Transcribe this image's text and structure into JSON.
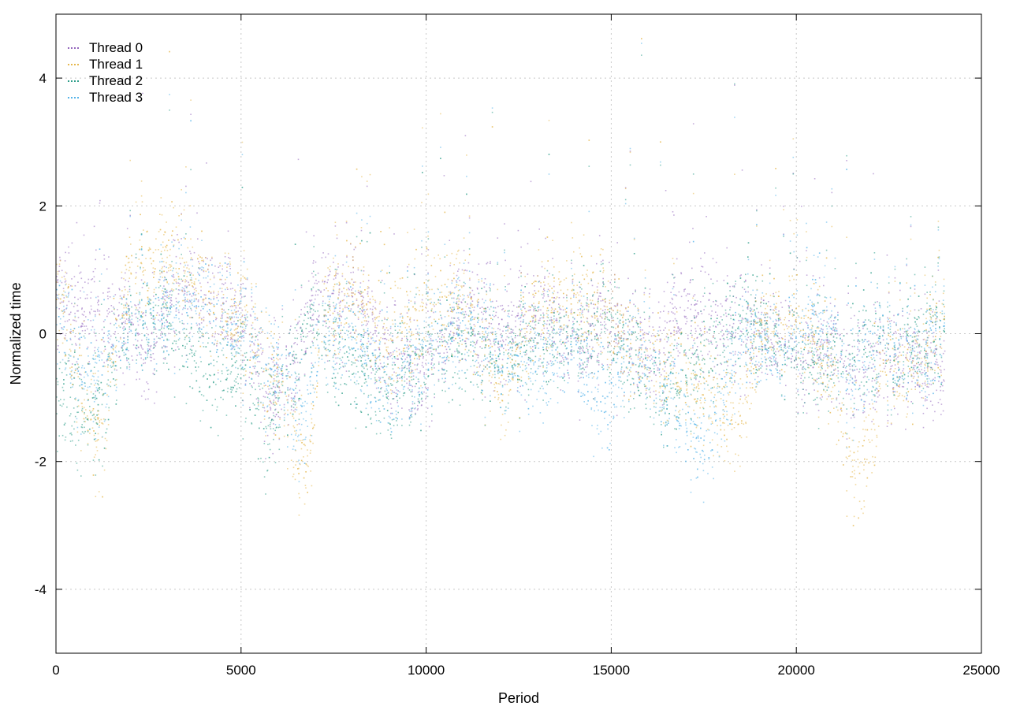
{
  "chart_data": {
    "type": "scatter",
    "title": "",
    "xlabel": "Period",
    "ylabel": "Normalized time",
    "xlim": [
      0,
      25000
    ],
    "ylim": [
      -5,
      5
    ],
    "xticks": [
      0,
      5000,
      10000,
      15000,
      20000,
      25000
    ],
    "yticks": [
      -4,
      -2,
      0,
      2,
      4
    ],
    "xtick_labels": [
      "0",
      "5000",
      "10000",
      "15000",
      "20000",
      "25000"
    ],
    "ytick_labels": [
      "-4",
      "-2",
      "0",
      "2",
      "4"
    ],
    "grid": true,
    "legend_position": "top-left",
    "x_extent": [
      0,
      24000
    ],
    "series": [
      {
        "name": "Thread 0",
        "color": "#9467bd",
        "trend": [
          [
            0,
            0.6
          ],
          [
            1000,
            0.2
          ],
          [
            2000,
            0.1
          ],
          [
            2500,
            -0.5
          ],
          [
            3000,
            0.6
          ],
          [
            4000,
            0.6
          ],
          [
            5000,
            0.2
          ],
          [
            5800,
            -1.0
          ],
          [
            6500,
            -0.5
          ],
          [
            7000,
            0.5
          ],
          [
            8000,
            0.5
          ],
          [
            9000,
            -0.4
          ],
          [
            10000,
            -0.5
          ],
          [
            11000,
            0.3
          ],
          [
            12000,
            0.1
          ],
          [
            13000,
            0.3
          ],
          [
            14000,
            -0.2
          ],
          [
            15000,
            0.2
          ],
          [
            16000,
            -0.3
          ],
          [
            17000,
            0.3
          ],
          [
            18000,
            0.2
          ],
          [
            19000,
            0.1
          ],
          [
            20000,
            -0.4
          ],
          [
            21000,
            -0.2
          ],
          [
            22000,
            -0.6
          ],
          [
            23000,
            -0.3
          ],
          [
            24000,
            -0.8
          ]
        ]
      },
      {
        "name": "Thread 1",
        "color": "#e6b84f",
        "trend": [
          [
            0,
            0.8
          ],
          [
            800,
            -1.2
          ],
          [
            1200,
            -1.6
          ],
          [
            2000,
            1.0
          ],
          [
            3000,
            1.2
          ],
          [
            4000,
            0.6
          ],
          [
            5000,
            0.3
          ],
          [
            6000,
            -0.8
          ],
          [
            6800,
            -2.3
          ],
          [
            7200,
            0.6
          ],
          [
            8000,
            0.5
          ],
          [
            9000,
            -0.2
          ],
          [
            10000,
            0.4
          ],
          [
            11000,
            0.5
          ],
          [
            12000,
            -0.8
          ],
          [
            13000,
            0.3
          ],
          [
            14000,
            0.5
          ],
          [
            15000,
            0.2
          ],
          [
            16500,
            -0.6
          ],
          [
            17500,
            -0.9
          ],
          [
            18500,
            -1.3
          ],
          [
            19000,
            0.1
          ],
          [
            20000,
            0.2
          ],
          [
            21000,
            -0.8
          ],
          [
            21700,
            -2.3
          ],
          [
            22500,
            -0.4
          ],
          [
            23000,
            -0.6
          ],
          [
            24000,
            0.2
          ]
        ]
      },
      {
        "name": "Thread 2",
        "color": "#2e9e8a",
        "trend": [
          [
            0,
            -1.0
          ],
          [
            800,
            -1.3
          ],
          [
            1500,
            -0.8
          ],
          [
            2000,
            0.2
          ],
          [
            3000,
            0.3
          ],
          [
            4000,
            -0.6
          ],
          [
            5000,
            -0.4
          ],
          [
            5700,
            -1.4
          ],
          [
            6500,
            -0.4
          ],
          [
            7000,
            0.3
          ],
          [
            8000,
            -0.6
          ],
          [
            9000,
            -0.9
          ],
          [
            10000,
            -0.3
          ],
          [
            11000,
            -0.2
          ],
          [
            12000,
            -0.3
          ],
          [
            13000,
            -0.2
          ],
          [
            14000,
            -0.1
          ],
          [
            15000,
            0.1
          ],
          [
            16500,
            -1.0
          ],
          [
            17500,
            -0.3
          ],
          [
            18500,
            0.3
          ],
          [
            19500,
            -0.2
          ],
          [
            20500,
            -0.6
          ],
          [
            21500,
            -0.2
          ],
          [
            22500,
            -0.3
          ],
          [
            23500,
            -0.1
          ],
          [
            24000,
            0.0
          ]
        ]
      },
      {
        "name": "Thread 3",
        "color": "#56b4e9",
        "trend": [
          [
            0,
            0.4
          ],
          [
            600,
            -0.6
          ],
          [
            1500,
            -0.5
          ],
          [
            2000,
            0.1
          ],
          [
            3000,
            0.5
          ],
          [
            4000,
            0.5
          ],
          [
            5000,
            0.1
          ],
          [
            6000,
            -0.6
          ],
          [
            6700,
            -1.5
          ],
          [
            7200,
            0.2
          ],
          [
            8000,
            -0.2
          ],
          [
            9000,
            -0.8
          ],
          [
            10000,
            -0.2
          ],
          [
            11000,
            0.1
          ],
          [
            12000,
            -0.3
          ],
          [
            13000,
            -0.6
          ],
          [
            14000,
            -0.2
          ],
          [
            14800,
            -1.3
          ],
          [
            15500,
            0.0
          ],
          [
            16500,
            -1.0
          ],
          [
            17500,
            -1.8
          ],
          [
            18500,
            0.0
          ],
          [
            19500,
            -0.3
          ],
          [
            20500,
            0.2
          ],
          [
            21500,
            -0.6
          ],
          [
            22500,
            -0.2
          ],
          [
            23500,
            -0.4
          ],
          [
            24000,
            0.1
          ]
        ]
      }
    ]
  }
}
